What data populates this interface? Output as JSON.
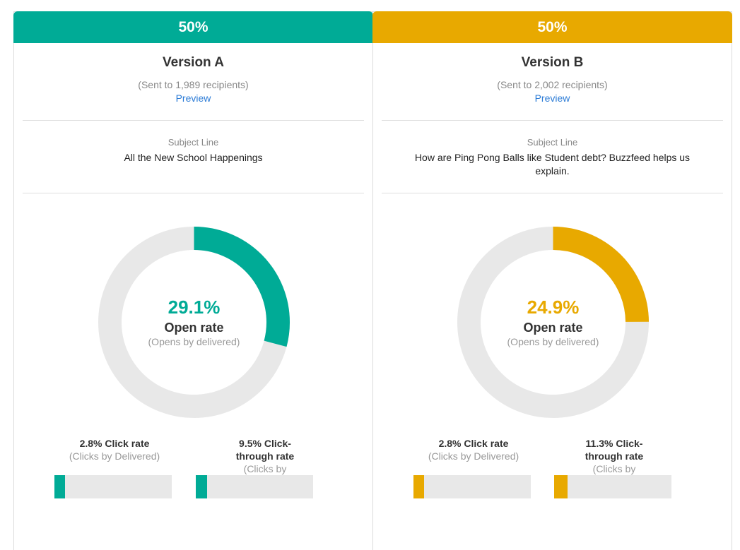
{
  "versions": [
    {
      "id": "a",
      "split": "50%",
      "name": "Version A",
      "sent": "(Sent to 1,989 recipients)",
      "preview_label": "Preview",
      "subject_label": "Subject Line",
      "subject": "All the New School Happenings",
      "open_rate": "29.1%",
      "open_rate_value": 0.291,
      "open_label": "Open rate",
      "open_sub": "(Opens by delivered)",
      "click_rate_title": "2.8% Click rate",
      "click_rate_sub": "(Clicks by Delivered)",
      "click_rate_value": 0.028,
      "ctr_title": "9.5% Click-through rate",
      "ctr_sub": "(Clicks by Opened)",
      "ctr_value": 0.095,
      "color": "#00ab96"
    },
    {
      "id": "b",
      "split": "50%",
      "name": "Version B",
      "sent": "(Sent to 2,002 recipients)",
      "preview_label": "Preview",
      "subject_label": "Subject Line",
      "subject": "How are Ping Pong Balls like Student debt? Buzzfeed helps us explain.",
      "open_rate": "24.9%",
      "open_rate_value": 0.249,
      "open_label": "Open rate",
      "open_sub": "(Opens by delivered)",
      "click_rate_title": "2.8% Click rate",
      "click_rate_sub": "(Clicks by Delivered)",
      "click_rate_value": 0.028,
      "ctr_title": "11.3% Click-through rate",
      "ctr_sub": "(Clicks by Opened)",
      "ctr_value": 0.113,
      "color": "#e8a900"
    }
  ],
  "track_color": "#e8e8e8"
}
